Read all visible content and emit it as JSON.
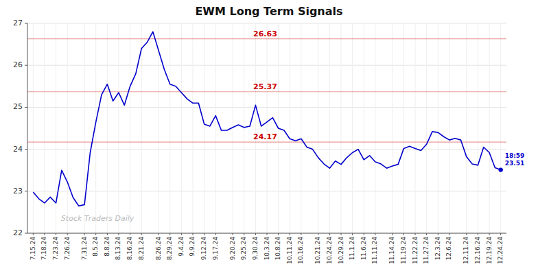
{
  "chart_data": {
    "type": "line",
    "title": "EWM Long Term Signals",
    "categories": [
      "7.15.24",
      null,
      "7.18.24",
      null,
      "7.23.24",
      null,
      "7.26.24",
      null,
      null,
      "7.31.24",
      null,
      "8.5.24",
      null,
      "8.8.24",
      null,
      "8.13.24",
      null,
      "8.16.24",
      null,
      "8.21.24",
      null,
      null,
      "8.26.24",
      null,
      "8.29.24",
      null,
      "9.4.24",
      null,
      "9.9.24",
      null,
      "9.12.24",
      null,
      "9.17.24",
      null,
      null,
      "9.20.24",
      null,
      "9.25.24",
      null,
      "9.30.24",
      null,
      "10.3.24",
      null,
      "10.8.24",
      null,
      "10.11.24",
      null,
      "10.16.24",
      null,
      null,
      "10.21.24",
      null,
      "10.24.24",
      null,
      "10.29.24",
      null,
      "11.1.24",
      null,
      "11.6.24",
      null,
      "11.11.24",
      null,
      null,
      "11.14.24",
      null,
      "11.19.24",
      null,
      "11.22.24",
      null,
      "11.27.24",
      null,
      "12.3.24",
      null,
      "12.6.24",
      null,
      null,
      "12.11.24",
      null,
      "12.16.24",
      null,
      "12.19.24",
      null,
      "12.24.24"
    ],
    "values": [
      22.98,
      22.82,
      22.72,
      22.86,
      22.72,
      23.5,
      23.22,
      22.85,
      22.65,
      22.68,
      23.92,
      24.65,
      25.3,
      25.55,
      25.15,
      25.35,
      25.05,
      25.5,
      25.8,
      26.4,
      26.55,
      26.8,
      26.35,
      25.9,
      25.55,
      25.5,
      25.35,
      25.2,
      25.1,
      25.1,
      24.6,
      24.55,
      24.8,
      24.45,
      24.45,
      24.52,
      24.58,
      24.52,
      24.55,
      25.05,
      24.55,
      24.65,
      24.75,
      24.5,
      24.45,
      24.25,
      24.2,
      24.25,
      24.05,
      24.0,
      23.8,
      23.65,
      23.55,
      23.72,
      23.64,
      23.8,
      23.92,
      24.0,
      23.75,
      23.85,
      23.7,
      23.65,
      23.55,
      23.6,
      23.64,
      24.02,
      24.07,
      24.02,
      23.97,
      24.12,
      24.42,
      24.4,
      24.3,
      24.22,
      24.26,
      24.22,
      23.82,
      23.65,
      23.62,
      24.05,
      23.92,
      23.56,
      23.51
    ],
    "color": "#0000CC",
    "ylim": [
      22,
      27
    ],
    "yticks": [
      22,
      23,
      24,
      25,
      26,
      27
    ],
    "grid": true,
    "hlines": {
      "values": [
        26.63,
        25.37,
        24.17
      ],
      "color": "#cc0000"
    },
    "annotation": "18:59\n23.51",
    "watermark": "Stock Traders Daily"
  }
}
